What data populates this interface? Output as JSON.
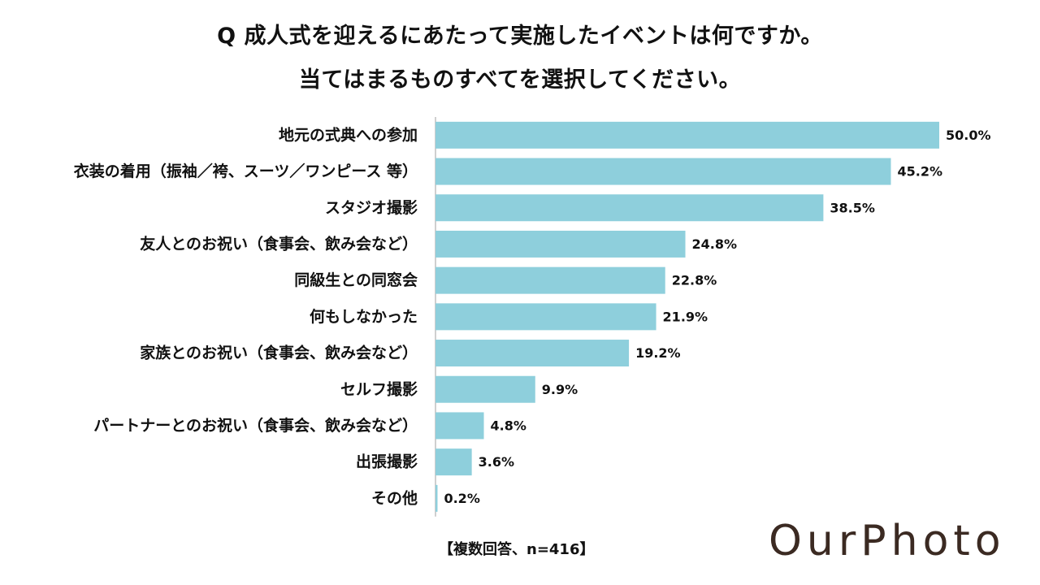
{
  "title": {
    "line1": "Q 成人式を迎えるにあたって実施したイベントは何ですか。",
    "line2": "当てはまるものすべてを選択してください。"
  },
  "note": "【複数回答、n=416】",
  "logo": "OurPhoto",
  "colors": {
    "bar": "#8ecfdc",
    "axis": "#bfbfbf",
    "text": "#111111",
    "logo": "#3b2a22"
  },
  "chart_data": {
    "type": "bar",
    "orientation": "horizontal",
    "title": "Q 成人式を迎えるにあたって実施したイベントは何ですか。当てはまるものすべてを選択してください。",
    "xlabel": "",
    "ylabel": "",
    "xlim": [
      0,
      50
    ],
    "grid": false,
    "legend": false,
    "categories": [
      "地元の式典への参加",
      "衣装の着用（振袖／袴、スーツ／ワンピース 等）",
      "スタジオ撮影",
      "友人とのお祝い（食事会、飲み会など）",
      "同級生との同窓会",
      "何もしなかった",
      "家族とのお祝い（食事会、飲み会など）",
      "セルフ撮影",
      "パートナーとのお祝い（食事会、飲み会など）",
      "出張撮影",
      "その他"
    ],
    "values": [
      50.0,
      45.2,
      38.5,
      24.8,
      22.8,
      21.9,
      19.2,
      9.9,
      4.8,
      3.6,
      0.2
    ],
    "value_labels": [
      "50.0%",
      "45.2%",
      "38.5%",
      "24.8%",
      "22.8%",
      "21.9%",
      "19.2%",
      "9.9%",
      "4.8%",
      "3.6%",
      "0.2%"
    ]
  }
}
